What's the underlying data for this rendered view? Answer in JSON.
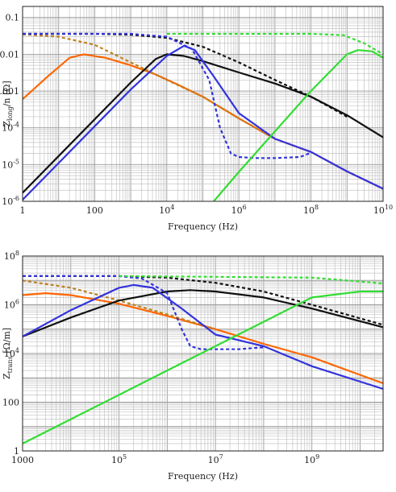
{
  "chart_data": [
    {
      "type": "line",
      "xscale": "log",
      "yscale": "log",
      "xlim": [
        1,
        10000000000
      ],
      "ylim": [
        1e-06,
        0.2
      ],
      "xlabel": "Frequency (Hz)",
      "ylabel_main": "Z",
      "ylabel_sub": "long",
      "ylabel_rest": "/n [Ω]",
      "xticks": [
        {
          "v": 1,
          "m": "1",
          "e": ""
        },
        {
          "v": 100,
          "m": "100",
          "e": ""
        },
        {
          "v": 10000,
          "m": "10",
          "e": "4"
        },
        {
          "v": 1000000,
          "m": "10",
          "e": "6"
        },
        {
          "v": 100000000,
          "m": "10",
          "e": "8"
        },
        {
          "v": 10000000000,
          "m": "10",
          "e": "10"
        }
      ],
      "yticks": [
        {
          "v": 0.1,
          "m": "0.1",
          "e": ""
        },
        {
          "v": 0.01,
          "m": "0.01",
          "e": ""
        },
        {
          "v": 0.001,
          "m": "0.001",
          "e": ""
        },
        {
          "v": 0.0001,
          "m": "10",
          "e": "-4"
        },
        {
          "v": 1e-05,
          "m": "10",
          "e": "-5"
        },
        {
          "v": 1e-06,
          "m": "10",
          "e": "-6"
        }
      ],
      "grid": true,
      "series": [
        {
          "color": "#ff6600",
          "dash": false,
          "x": [
            1,
            5,
            20,
            50,
            200,
            1000,
            5000,
            20000,
            100000,
            1000000,
            10000000,
            50000000,
            100000000,
            1000000000,
            10000000000
          ],
          "y": [
            0.0006,
            0.0025,
            0.008,
            0.01,
            0.008,
            0.005,
            0.0028,
            0.0015,
            0.0007,
            0.00018,
            5e-05,
            2.8e-05,
            2.2e-05,
            6.5e-06,
            2.2e-06
          ]
        },
        {
          "color": "#c08020",
          "dash": true,
          "x": [
            1,
            10,
            100,
            1000,
            10000,
            100000,
            1000000,
            10000000,
            100000000
          ],
          "y": [
            0.035,
            0.03,
            0.018,
            0.006,
            0.002,
            0.0007,
            0.00018,
            5e-05,
            2.2e-05
          ]
        },
        {
          "color": "#111111",
          "dash": false,
          "x": [
            1,
            10,
            100,
            1000,
            5000,
            10000,
            30000,
            100000,
            1000000,
            10000000,
            100000000,
            1000000000,
            10000000000
          ],
          "y": [
            1.7e-06,
            1.7e-05,
            0.00017,
            0.0017,
            0.0075,
            0.01,
            0.009,
            0.0065,
            0.0032,
            0.0016,
            0.0007,
            0.00022,
            5.5e-05
          ]
        },
        {
          "color": "#111111",
          "dash": true,
          "x": [
            1,
            100,
            1000,
            10000,
            100000,
            1000000,
            10000000,
            100000000,
            1000000000
          ],
          "y": [
            0.036,
            0.036,
            0.034,
            0.028,
            0.016,
            0.006,
            0.002,
            0.0007,
            0.0002
          ]
        },
        {
          "color": "#3333dd",
          "dash": false,
          "x": [
            1,
            10,
            100,
            1000,
            10000,
            30000,
            60000,
            200000,
            1000000,
            10000000,
            100000000,
            1000000000,
            10000000000
          ],
          "y": [
            1.1e-06,
            1.1e-05,
            0.00011,
            0.0011,
            0.009,
            0.017,
            0.013,
            0.0025,
            0.00025,
            5e-05,
            2.2e-05,
            6.5e-06,
            2.2e-06
          ]
        },
        {
          "color": "#3333dd",
          "dash": true,
          "x": [
            1,
            1000,
            10000,
            50000,
            150000,
            300000,
            600000,
            1000000,
            3000000,
            10000000,
            50000000,
            100000000
          ],
          "y": [
            0.036,
            0.036,
            0.03,
            0.014,
            0.002,
            0.0001,
            2e-05,
            1.6e-05,
            1.5e-05,
            1.5e-05,
            1.6e-05,
            2.1e-05
          ]
        },
        {
          "color": "#33dd33",
          "dash": false,
          "x": [
            200000,
            1000000,
            10000000,
            100000000,
            1000000000,
            2000000000,
            5000000000,
            10000000000
          ],
          "y": [
            1e-06,
            6.3e-06,
            8e-05,
            0.001,
            0.01,
            0.013,
            0.012,
            0.008
          ]
        },
        {
          "color": "#33dd33",
          "dash": true,
          "x": [
            10000,
            1000000,
            10000000,
            100000000,
            800000000,
            3000000000,
            10000000000
          ],
          "y": [
            0.036,
            0.036,
            0.036,
            0.036,
            0.033,
            0.02,
            0.01
          ]
        }
      ]
    },
    {
      "type": "line",
      "xscale": "log",
      "yscale": "log",
      "xlim": [
        1000,
        30000000000
      ],
      "ylim": [
        1,
        100000000
      ],
      "xlabel": "Frequency (Hz)",
      "ylabel_main": "Z",
      "ylabel_sub": "trans",
      "ylabel_rest": " [Ω/m]",
      "xticks": [
        {
          "v": 1000,
          "m": "1000",
          "e": ""
        },
        {
          "v": 100000,
          "m": "10",
          "e": "5"
        },
        {
          "v": 10000000,
          "m": "10",
          "e": "7"
        },
        {
          "v": 1000000000,
          "m": "10",
          "e": "9"
        }
      ],
      "yticks": [
        {
          "v": 100000000,
          "m": "10",
          "e": "8"
        },
        {
          "v": 1000000,
          "m": "10",
          "e": "6"
        },
        {
          "v": 10000,
          "m": "10",
          "e": "4"
        },
        {
          "v": 100,
          "m": "100",
          "e": ""
        },
        {
          "v": 1,
          "m": "1",
          "e": ""
        }
      ],
      "grid": true,
      "series": [
        {
          "color": "#ff6600",
          "dash": false,
          "x": [
            1000,
            3000,
            10000,
            100000,
            1000000,
            10000000,
            100000000,
            1000000000,
            30000000000
          ],
          "y": [
            2500000,
            3000000,
            2500000,
            1100000,
            350000,
            100000,
            25000,
            7000,
            600
          ]
        },
        {
          "color": "#c08020",
          "dash": true,
          "x": [
            1000,
            10000,
            100000,
            1000000,
            10000000
          ],
          "y": [
            10000000,
            5000000,
            1500000,
            400000,
            100000
          ]
        },
        {
          "color": "#111111",
          "dash": false,
          "x": [
            1000,
            10000,
            100000,
            1000000,
            3000000,
            10000000,
            100000000,
            1000000000,
            30000000000
          ],
          "y": [
            50000,
            300000,
            1500000,
            3500000,
            4000000,
            3500000,
            2000000,
            700000,
            120000
          ]
        },
        {
          "color": "#111111",
          "dash": true,
          "x": [
            1000,
            100000,
            1000000,
            10000000,
            100000000,
            1000000000,
            30000000000
          ],
          "y": [
            15000000,
            15000000,
            13000000,
            8000000,
            3500000,
            1000000,
            150000
          ]
        },
        {
          "color": "#3333dd",
          "dash": false,
          "x": [
            1000,
            10000,
            100000,
            200000,
            500000,
            2000000,
            10000000,
            100000000,
            1000000000,
            30000000000
          ],
          "y": [
            50000,
            600000,
            5000000,
            6500000,
            5000000,
            700000,
            60000,
            20000,
            3000,
            350
          ]
        },
        {
          "color": "#3333dd",
          "dash": true,
          "x": [
            1000,
            100000,
            300000,
            1000000,
            2000000,
            3000000,
            5000000,
            10000000,
            30000000,
            100000000
          ],
          "y": [
            15000000,
            15000000,
            12000000,
            3000000,
            100000,
            20000,
            15000,
            15000,
            15000,
            18000
          ]
        },
        {
          "color": "#33dd33",
          "dash": false,
          "x": [
            1000,
            10000,
            100000,
            1000000,
            10000000,
            100000000,
            1000000000,
            10000000000,
            30000000000
          ],
          "y": [
            2,
            20,
            200,
            2000,
            20000,
            200000,
            2000000,
            3500000,
            3500000
          ]
        },
        {
          "color": "#33dd33",
          "dash": true,
          "x": [
            100000,
            10000000,
            1000000000,
            10000000000,
            30000000000
          ],
          "y": [
            15000000,
            14000000,
            13000000,
            9000000,
            7500000
          ]
        }
      ]
    }
  ]
}
